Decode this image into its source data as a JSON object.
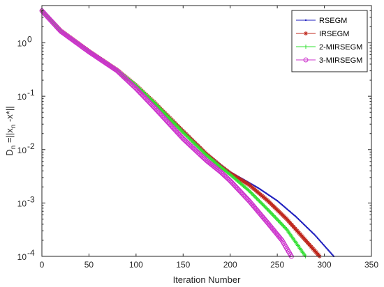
{
  "chart_data": {
    "type": "line",
    "xlabel": "Iteration Number",
    "ylabel": {
      "base": "D",
      "base_sub": "n",
      "middle": " =||x",
      "middle_sub": "n",
      "tail": " -x*||"
    },
    "xlim": [
      0,
      350
    ],
    "ylim": [
      0.0001,
      5
    ],
    "yscale": "log",
    "xticks": [
      0,
      50,
      100,
      150,
      200,
      250,
      300,
      350
    ],
    "yticks": [
      {
        "value": 1,
        "base": "10",
        "exp": "0"
      },
      {
        "value": 0.1,
        "base": "10",
        "exp": "-1"
      },
      {
        "value": 0.01,
        "base": "10",
        "exp": "-2"
      },
      {
        "value": 0.001,
        "base": "10",
        "exp": "-3"
      },
      {
        "value": 0.0001,
        "base": "10",
        "exp": "-4"
      }
    ],
    "grid": false,
    "legend_position": "top-right",
    "series": [
      {
        "name": "RSEGM",
        "color": "#1f1fbf",
        "marker": "dot",
        "x": [
          0,
          20,
          50,
          80,
          100,
          120,
          150,
          175,
          190,
          200,
          215,
          230,
          250,
          270,
          290,
          310
        ],
        "y": [
          4,
          1.7,
          0.7,
          0.31,
          0.16,
          0.077,
          0.023,
          0.0085,
          0.0052,
          0.0038,
          0.0027,
          0.0019,
          0.0011,
          0.00055,
          0.00025,
          0.0001
        ]
      },
      {
        "name": "IRSEGM",
        "color": "#c0281e",
        "marker": "star",
        "x": [
          0,
          20,
          50,
          80,
          100,
          120,
          150,
          175,
          190,
          200,
          220,
          240,
          260,
          280,
          295
        ],
        "y": [
          4,
          1.7,
          0.7,
          0.31,
          0.16,
          0.075,
          0.022,
          0.0082,
          0.0049,
          0.0036,
          0.0022,
          0.0011,
          0.0005,
          0.0002,
          0.0001
        ]
      },
      {
        "name": "2-MIRSEGM",
        "color": "#33e033",
        "marker": "plus",
        "x": [
          0,
          20,
          50,
          80,
          100,
          120,
          150,
          175,
          190,
          200,
          220,
          240,
          260,
          280
        ],
        "y": [
          4,
          1.7,
          0.7,
          0.31,
          0.16,
          0.074,
          0.021,
          0.0078,
          0.0047,
          0.0034,
          0.0017,
          0.00075,
          0.00032,
          0.0001
        ]
      },
      {
        "name": "3-MIRSEGM",
        "color": "#cc33cc",
        "marker": "circle",
        "x": [
          0,
          20,
          50,
          80,
          100,
          120,
          150,
          175,
          190,
          200,
          220,
          240,
          255,
          265
        ],
        "y": [
          4,
          1.65,
          0.68,
          0.3,
          0.14,
          0.06,
          0.016,
          0.0062,
          0.0038,
          0.0026,
          0.0011,
          0.00042,
          0.0002,
          0.0001
        ]
      }
    ]
  }
}
